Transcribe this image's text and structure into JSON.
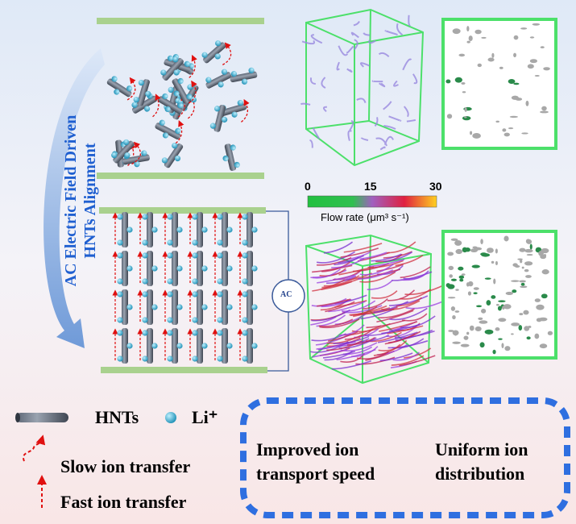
{
  "process_label": {
    "line1": "AC Electric Field Driven",
    "line2": "HNTs Alignment"
  },
  "ac_source": "AC",
  "colorbar": {
    "ticks": [
      "0",
      "15",
      "30"
    ],
    "label": "Flow rate (μm³ s⁻¹)",
    "range": [
      0,
      30
    ]
  },
  "legend": {
    "hnts": "HNTs",
    "li": "Li⁺",
    "slow": "Slow ion transfer",
    "fast": "Fast ion transfer"
  },
  "benefits": [
    {
      "line1": "Improved ion",
      "line2": "transport speed"
    },
    {
      "line1": "Uniform ion",
      "line2": "distribution"
    }
  ],
  "colors": {
    "electrode": "#a9d18e",
    "frame": "#4ce06a",
    "label": "#1f5fd0",
    "dash_box": "#2f6fe0",
    "arrow": "#e01010"
  }
}
